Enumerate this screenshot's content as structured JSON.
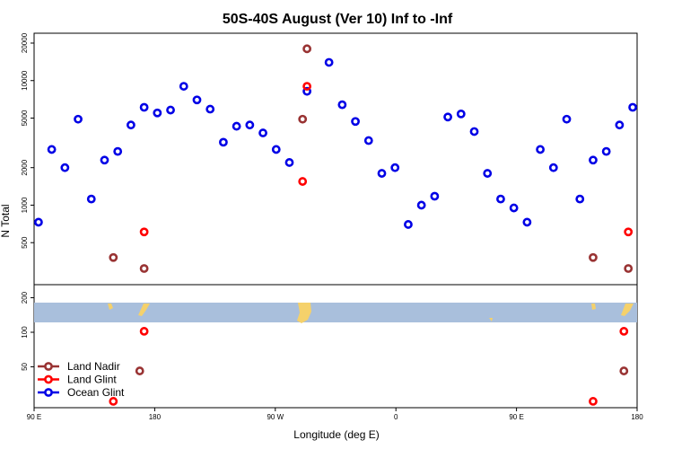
{
  "chart_data": {
    "type": "scatter",
    "title": "50S-40S August (Ver 10)   Inf to -Inf",
    "xlabel": "Longitude (deg E)",
    "ylabel": "N Total",
    "x_ticks": [
      "90 E",
      "180",
      "90 W",
      "0",
      "90 E",
      "180"
    ],
    "upper_panel": {
      "y_scale": "log",
      "ylim": [
        230,
        24000
      ],
      "y_ticks": [
        "500",
        "1000",
        "2000",
        "5000",
        "10000",
        "20000"
      ],
      "series": [
        {
          "name": "Ocean Glint",
          "color": "#0000e6",
          "points": [
            [
              1,
              730
            ],
            [
              4,
              2800
            ],
            [
              7,
              2000
            ],
            [
              10,
              4900
            ],
            [
              13,
              1120
            ],
            [
              16,
              2300
            ],
            [
              19,
              2700
            ],
            [
              22,
              4400
            ],
            [
              25,
              6100
            ],
            [
              28,
              5500
            ],
            [
              31,
              5800
            ],
            [
              34,
              9000
            ],
            [
              37,
              7000
            ],
            [
              40,
              5900
            ],
            [
              43,
              3200
            ],
            [
              46,
              4300
            ],
            [
              49,
              4400
            ],
            [
              52,
              3800
            ],
            [
              55,
              2800
            ],
            [
              58,
              2200
            ],
            [
              62,
              8200
            ],
            [
              67,
              14000
            ],
            [
              70,
              6400
            ],
            [
              73,
              4700
            ],
            [
              76,
              3300
            ],
            [
              79,
              1800
            ],
            [
              82,
              2000
            ],
            [
              85,
              700
            ],
            [
              88,
              1000
            ],
            [
              91,
              1180
            ],
            [
              94,
              5100
            ],
            [
              97,
              5400
            ],
            [
              100,
              3900
            ],
            [
              103,
              1800
            ],
            [
              106,
              1120
            ],
            [
              109,
              950
            ],
            [
              112,
              730
            ],
            [
              115,
              2800
            ],
            [
              118,
              2000
            ],
            [
              121,
              4900
            ],
            [
              124,
              1120
            ],
            [
              127,
              2300
            ],
            [
              130,
              2700
            ],
            [
              133,
              4400
            ],
            [
              136,
              6100
            ]
          ]
        },
        {
          "name": "Land Glint",
          "color": "#ff0000",
          "points": [
            [
              25,
              610
            ],
            [
              61,
              1550
            ],
            [
              62,
              9000
            ],
            [
              135,
              610
            ]
          ]
        },
        {
          "name": "Land Nadir",
          "color": "#993333",
          "points": [
            [
              18,
              380
            ],
            [
              25,
              310
            ],
            [
              61,
              4900
            ],
            [
              62,
              18000
            ],
            [
              127,
              380
            ],
            [
              135,
              310
            ]
          ]
        }
      ]
    },
    "lower_panel": {
      "y_scale": "log",
      "ylim": [
        22,
        260
      ],
      "y_ticks": [
        "50",
        "100",
        "200"
      ],
      "series": [
        {
          "name": "Land Glint",
          "color": "#ff0000",
          "points": [
            [
              18,
              25
            ],
            [
              25,
              102
            ],
            [
              127,
              25
            ],
            [
              134,
              102
            ]
          ]
        },
        {
          "name": "Land Nadir",
          "color": "#993333",
          "points": [
            [
              24,
              46
            ],
            [
              134,
              46
            ]
          ]
        }
      ]
    },
    "legend": {
      "placement": "bottom-left",
      "entries": [
        {
          "label": "Land Nadir",
          "color": "#993333"
        },
        {
          "label": "Land Glint",
          "color": "#ff0000"
        },
        {
          "label": "Ocean Glint",
          "color": "#0000e6"
        }
      ]
    },
    "map_strip": {
      "ocean_color": "#a9bfdc",
      "land_color": "#f5d16b"
    }
  }
}
